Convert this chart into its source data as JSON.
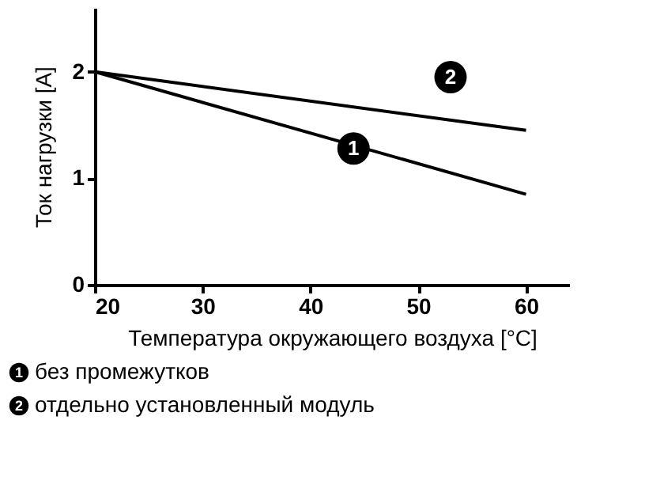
{
  "chart_data": {
    "type": "line",
    "xlabel": "Температура окружающего воздуха [°C]",
    "ylabel": "Ток нагрузки [A]",
    "x": [
      20,
      60
    ],
    "series": [
      {
        "name": "без промежутков",
        "color": "#000000",
        "values": [
          2,
          0.85
        ]
      },
      {
        "name": "отдельно установленный модуль",
        "color": "#000000",
        "values": [
          2,
          1.45
        ]
      }
    ],
    "annotations": [
      {
        "text": "1",
        "x": 44,
        "y": 1.28
      },
      {
        "text": "2",
        "x": 53,
        "y": 1.95
      }
    ],
    "xlim": [
      20,
      64
    ],
    "ylim": [
      0,
      2.6
    ],
    "xticks": [
      20,
      30,
      40,
      50,
      60
    ],
    "yticks": [
      0,
      1,
      2
    ],
    "grid": false,
    "legend": "bottom",
    "marker": "none",
    "line_style": "solid"
  }
}
